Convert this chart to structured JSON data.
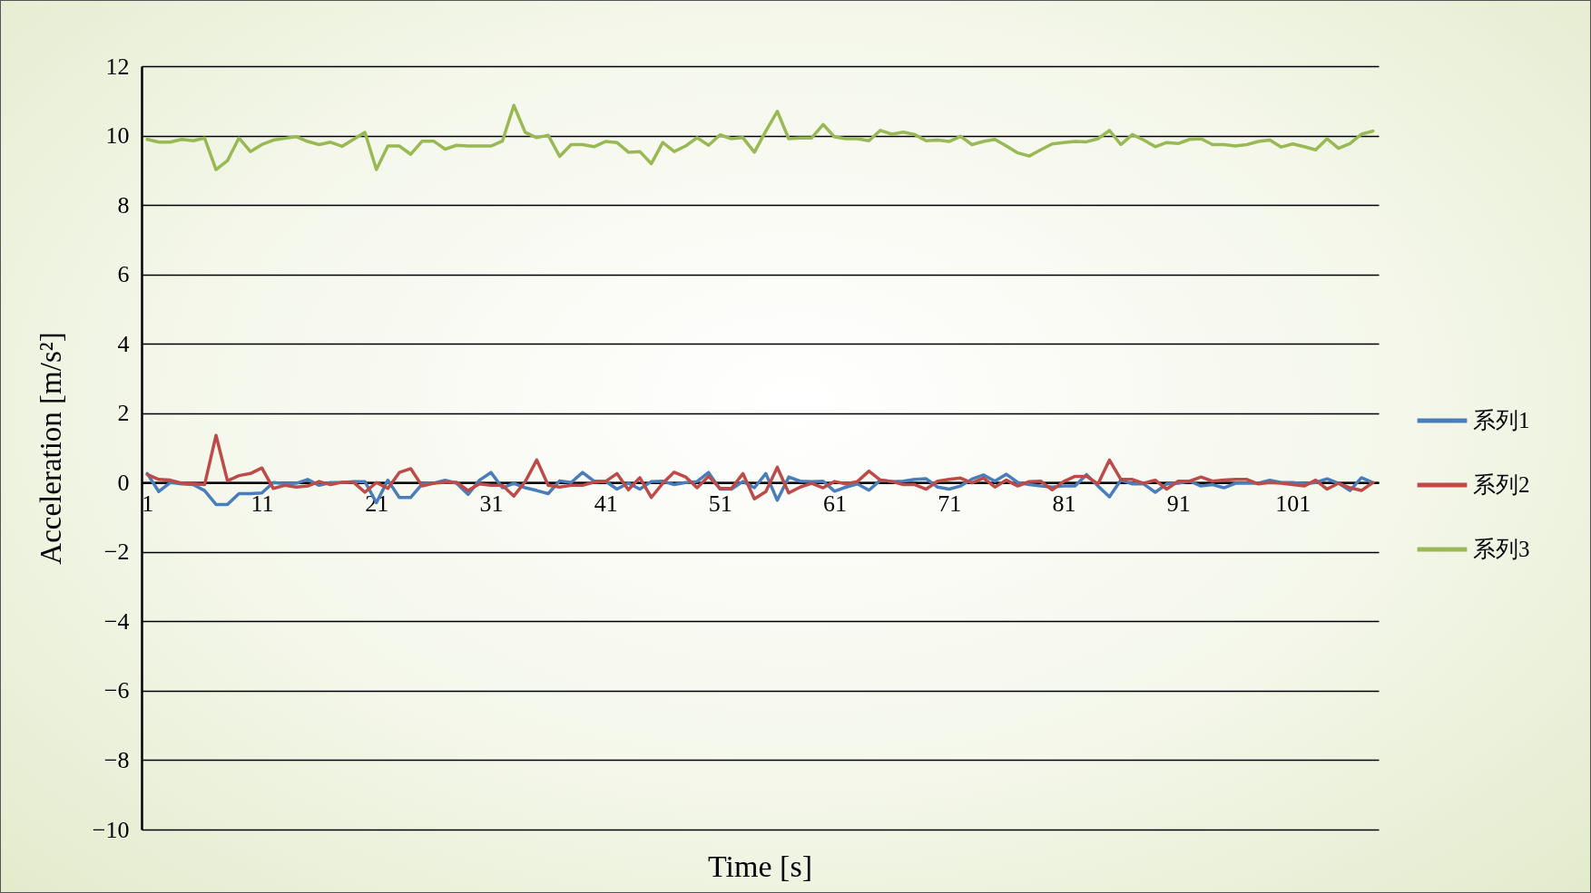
{
  "chart_data": {
    "type": "line",
    "xlabel": "Time [s]",
    "ylabel": "Acceleration [m/s²]",
    "categories": [
      "1",
      null,
      null,
      null,
      null,
      null,
      null,
      null,
      null,
      null,
      "11",
      null,
      null,
      null,
      null,
      null,
      null,
      null,
      null,
      null,
      "21",
      null,
      null,
      null,
      null,
      null,
      null,
      null,
      null,
      null,
      "31",
      null,
      null,
      null,
      null,
      null,
      null,
      null,
      null,
      null,
      "41",
      null,
      null,
      null,
      null,
      null,
      null,
      null,
      null,
      null,
      "51",
      null,
      null,
      null,
      null,
      null,
      null,
      null,
      null,
      null,
      "61",
      null,
      null,
      null,
      null,
      null,
      null,
      null,
      null,
      null,
      "71",
      null,
      null,
      null,
      null,
      null,
      null,
      null,
      null,
      null,
      "81",
      null,
      null,
      null,
      null,
      null,
      null,
      null,
      null,
      null,
      "91",
      null,
      null,
      null,
      null,
      null,
      null,
      null,
      null,
      null,
      "101",
      null,
      null,
      null,
      null,
      null,
      null,
      null
    ],
    "series": [
      {
        "name": "系列1",
        "color": "#4a7ebb",
        "values": [
          0.26,
          -0.26,
          0,
          -0.04,
          -0.06,
          -0.23,
          -0.63,
          -0.63,
          -0.32,
          -0.32,
          -0.3,
          0,
          -0.03,
          -0.02,
          0.09,
          -0.08,
          0,
          0,
          0.03,
          0.03,
          -0.58,
          0.07,
          -0.43,
          -0.43,
          -0.04,
          -0.02,
          0.07,
          -0.02,
          -0.34,
          0.07,
          0.29,
          -0.15,
          -0.02,
          -0.15,
          -0.23,
          -0.32,
          0.05,
          0,
          0.29,
          0.04,
          0.04,
          -0.19,
          -0.02,
          -0.19,
          0.03,
          0.04,
          -0.06,
          0,
          0.03,
          0.29,
          -0.19,
          -0.19,
          0.03,
          -0.15,
          0.26,
          -0.51,
          0.16,
          0.04,
          0.03,
          0.04,
          -0.25,
          -0.13,
          -0.04,
          -0.22,
          0.07,
          0.03,
          0.04,
          0.09,
          0.11,
          -0.13,
          -0.19,
          -0.1,
          0.1,
          0.22,
          0.04,
          0.24,
          0,
          -0.06,
          -0.1,
          -0.13,
          -0.1,
          -0.1,
          0.23,
          -0.1,
          -0.41,
          0.07,
          -0.04,
          -0.04,
          -0.28,
          -0.04,
          -0.02,
          0.04,
          -0.1,
          -0.06,
          -0.15,
          -0.02,
          -0.02,
          -0.02,
          0.07,
          0,
          0,
          -0.04,
          0,
          0.11,
          -0.02,
          -0.23,
          0.14,
          0
        ]
      },
      {
        "name": "系列2",
        "color": "#be4b48",
        "values": [
          0.23,
          0.09,
          0.07,
          -0.02,
          -0.04,
          -0.06,
          1.36,
          0.05,
          0.2,
          0.26,
          0.42,
          -0.17,
          -0.08,
          -0.13,
          -0.1,
          0.03,
          -0.06,
          0.01,
          0.01,
          -0.28,
          0,
          -0.17,
          0.29,
          0.4,
          -0.1,
          -0.02,
          0.01,
          0.01,
          -0.23,
          -0.04,
          -0.08,
          -0.08,
          -0.39,
          0.03,
          0.65,
          -0.08,
          -0.13,
          -0.08,
          -0.08,
          0.01,
          0.03,
          0.26,
          -0.21,
          0.14,
          -0.43,
          -0.02,
          0.3,
          0.16,
          -0.15,
          0.18,
          -0.17,
          -0.17,
          0.26,
          -0.47,
          -0.26,
          0.44,
          -0.3,
          -0.13,
          -0.02,
          -0.15,
          0.03,
          -0.04,
          0.03,
          0.33,
          0.07,
          0.03,
          -0.06,
          -0.06,
          -0.19,
          0.04,
          0.09,
          0.13,
          -0.01,
          0.13,
          -0.13,
          0.07,
          -0.1,
          0.03,
          0.04,
          -0.21,
          0.03,
          0.18,
          0.18,
          -0.04,
          0.65,
          0.09,
          0.09,
          -0.02,
          0.07,
          -0.19,
          0.04,
          0.04,
          0.16,
          0.04,
          0.07,
          0.09,
          0.09,
          -0.04,
          0,
          -0.02,
          -0.06,
          -0.1,
          0.07,
          -0.19,
          -0.02,
          -0.15,
          -0.23,
          0
        ]
      },
      {
        "name": "系列3",
        "color": "#98b954",
        "values": [
          9.89,
          9.81,
          9.81,
          9.89,
          9.85,
          9.93,
          9.02,
          9.28,
          9.93,
          9.54,
          9.74,
          9.87,
          9.92,
          9.97,
          9.83,
          9.74,
          9.81,
          9.69,
          9.89,
          10.09,
          9.02,
          9.7,
          9.7,
          9.46,
          9.84,
          9.84,
          9.61,
          9.72,
          9.7,
          9.7,
          9.7,
          9.84,
          10.87,
          10.09,
          9.94,
          10.01,
          9.4,
          9.74,
          9.74,
          9.68,
          9.83,
          9.8,
          9.52,
          9.54,
          9.19,
          9.8,
          9.54,
          9.7,
          9.94,
          9.72,
          10.02,
          9.91,
          9.94,
          9.52,
          10.13,
          10.7,
          9.91,
          9.93,
          9.93,
          10.32,
          9.96,
          9.91,
          9.91,
          9.85,
          10.15,
          10.04,
          10.1,
          10.03,
          9.85,
          9.87,
          9.83,
          9.98,
          9.74,
          9.83,
          9.89,
          9.7,
          9.5,
          9.41,
          9.59,
          9.76,
          9.8,
          9.83,
          9.82,
          9.91,
          10.15,
          9.74,
          10.03,
          9.87,
          9.68,
          9.8,
          9.77,
          9.89,
          9.91,
          9.74,
          9.74,
          9.7,
          9.74,
          9.83,
          9.87,
          9.67,
          9.76,
          9.68,
          9.59,
          9.91,
          9.63,
          9.77,
          10.04,
          10.13
        ]
      }
    ],
    "ylim": [
      -10,
      12
    ],
    "yticks": [
      -10,
      -8,
      -6,
      -4,
      -2,
      0,
      2,
      4,
      6,
      8,
      10,
      12
    ],
    "grid": "y",
    "legend": "right",
    "marker": "none",
    "line_style": "solid"
  }
}
